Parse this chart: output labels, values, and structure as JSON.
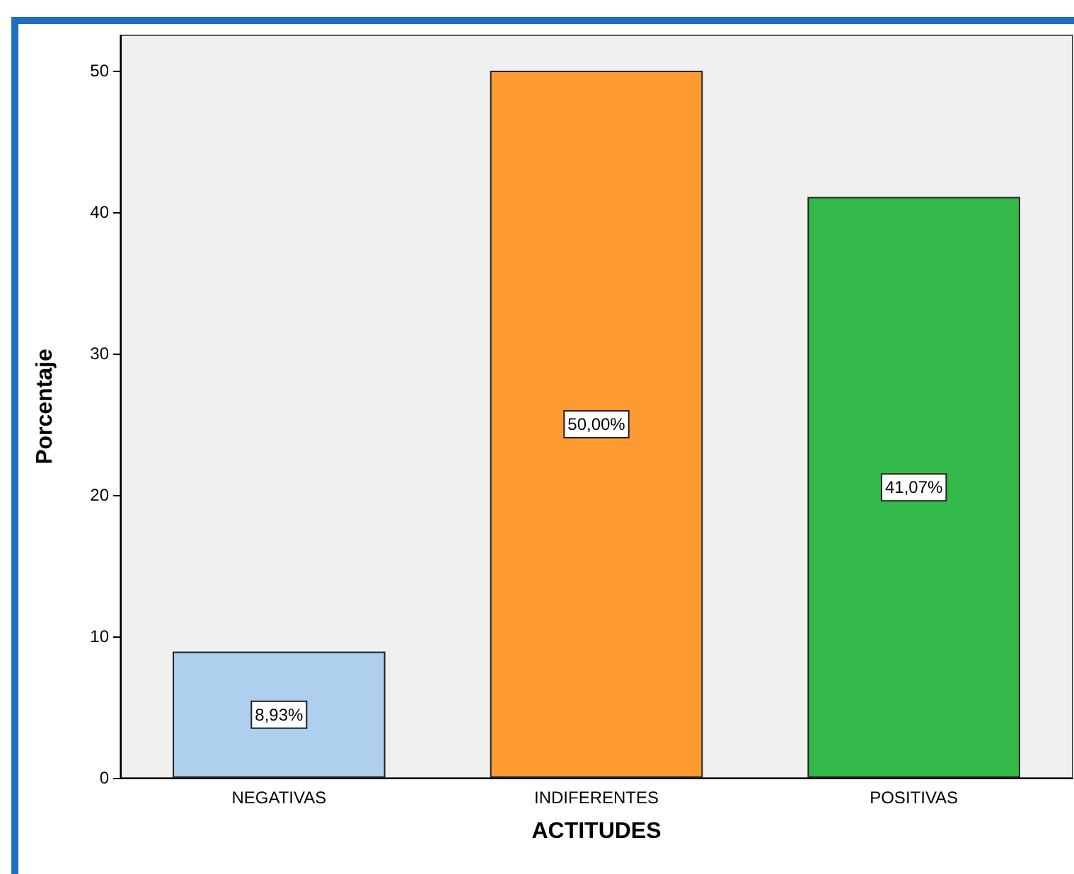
{
  "chart_data": {
    "type": "bar",
    "xlabel": "ACTITUDES",
    "ylabel": "Porcentaje",
    "categories": [
      "NEGATIVAS",
      "INDIFERENTES",
      "POSITIVAS"
    ],
    "values": [
      8.93,
      50.0,
      41.07
    ],
    "colors": [
      "#aecfee",
      "#ff9a33",
      "#33b84a"
    ],
    "value_labels": [
      "8,93%",
      "50,00%",
      "41,07%"
    ],
    "ylim": [
      0,
      52.5
    ],
    "yticks": [
      0,
      10,
      20,
      30,
      40,
      50
    ],
    "grid": false
  }
}
